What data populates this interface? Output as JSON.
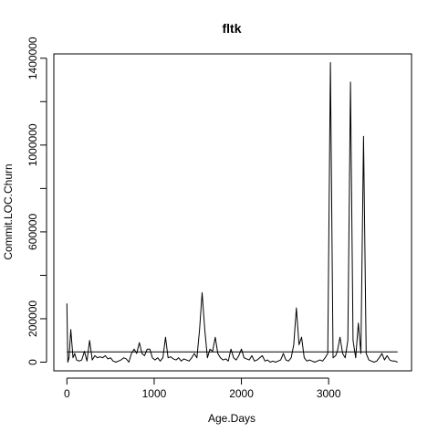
{
  "chart_data": {
    "type": "line",
    "title": "fltk",
    "xlabel": "Age.Days",
    "ylabel": "Commit.LOC.Churn",
    "xlim": [
      -150,
      3950
    ],
    "ylim": [
      -40000,
      1420000
    ],
    "x_ticks": [
      0,
      1000,
      2000,
      3000
    ],
    "x_tick_labels": [
      "0",
      "1000",
      "2000",
      "3000"
    ],
    "y_ticks": [
      0,
      200000,
      600000,
      1000000,
      1400000
    ],
    "y_tick_labels": [
      "0",
      "200000",
      "600000",
      "1000000",
      "1400000"
    ],
    "y_minor_ticks": [
      400000,
      800000,
      1200000
    ],
    "grid": false,
    "legend": "none",
    "series": [
      {
        "x": [
          0,
          10,
          25,
          45,
          70,
          90,
          110,
          140,
          170,
          200,
          230,
          260,
          290,
          320,
          350,
          380,
          410,
          440,
          470,
          500,
          530,
          560,
          590,
          620,
          650,
          680,
          710,
          740,
          770,
          800,
          830,
          860,
          890,
          920,
          950,
          980,
          1010,
          1040,
          1070,
          1100,
          1130,
          1160,
          1190,
          1220,
          1250,
          1280,
          1310,
          1340,
          1370,
          1400,
          1430,
          1460,
          1490,
          1520,
          1550,
          1580,
          1610,
          1640,
          1670,
          1700,
          1730,
          1760,
          1790,
          1820,
          1850,
          1880,
          1910,
          1940,
          1970,
          2000,
          2030,
          2060,
          2090,
          2120,
          2150,
          2180,
          2210,
          2240,
          2270,
          2300,
          2330,
          2360,
          2390,
          2420,
          2450,
          2480,
          2510,
          2540,
          2570,
          2600,
          2630,
          2660,
          2690,
          2720,
          2750,
          2780,
          2810,
          2840,
          2870,
          2900,
          2930,
          2960,
          2990,
          3020,
          3050,
          3080,
          3100,
          3130,
          3160,
          3190,
          3220,
          3250,
          3280,
          3310,
          3340,
          3370,
          3400,
          3430,
          3460,
          3490,
          3520,
          3550,
          3580,
          3610,
          3640,
          3670,
          3700,
          3730,
          3760,
          3790
        ],
        "y": [
          270000,
          0,
          20000,
          150000,
          20000,
          40000,
          10000,
          5000,
          10000,
          50000,
          5000,
          100000,
          10000,
          30000,
          20000,
          25000,
          20000,
          30000,
          15000,
          20000,
          5000,
          0,
          5000,
          10000,
          20000,
          15000,
          0,
          40000,
          60000,
          40000,
          90000,
          40000,
          30000,
          60000,
          60000,
          20000,
          10000,
          20000,
          5000,
          20000,
          115000,
          20000,
          25000,
          15000,
          10000,
          20000,
          5000,
          15000,
          10000,
          5000,
          20000,
          40000,
          20000,
          150000,
          320000,
          150000,
          20000,
          60000,
          50000,
          115000,
          40000,
          20000,
          10000,
          15000,
          5000,
          60000,
          20000,
          10000,
          30000,
          60000,
          20000,
          15000,
          10000,
          30000,
          5000,
          10000,
          20000,
          30000,
          5000,
          10000,
          0,
          5000,
          0,
          5000,
          10000,
          40000,
          10000,
          5000,
          20000,
          80000,
          250000,
          80000,
          115000,
          20000,
          5000,
          10000,
          5000,
          0,
          5000,
          10000,
          5000,
          20000,
          40000,
          1380000,
          20000,
          30000,
          50000,
          115000,
          40000,
          20000,
          100000,
          1290000,
          100000,
          20000,
          180000,
          40000,
          1040000,
          40000,
          10000,
          5000,
          0,
          5000,
          20000,
          40000,
          10000,
          30000,
          10000,
          5000,
          5000,
          0
        ]
      },
      {
        "x": [
          0,
          3790
        ],
        "y": [
          47000,
          47000
        ]
      }
    ]
  }
}
